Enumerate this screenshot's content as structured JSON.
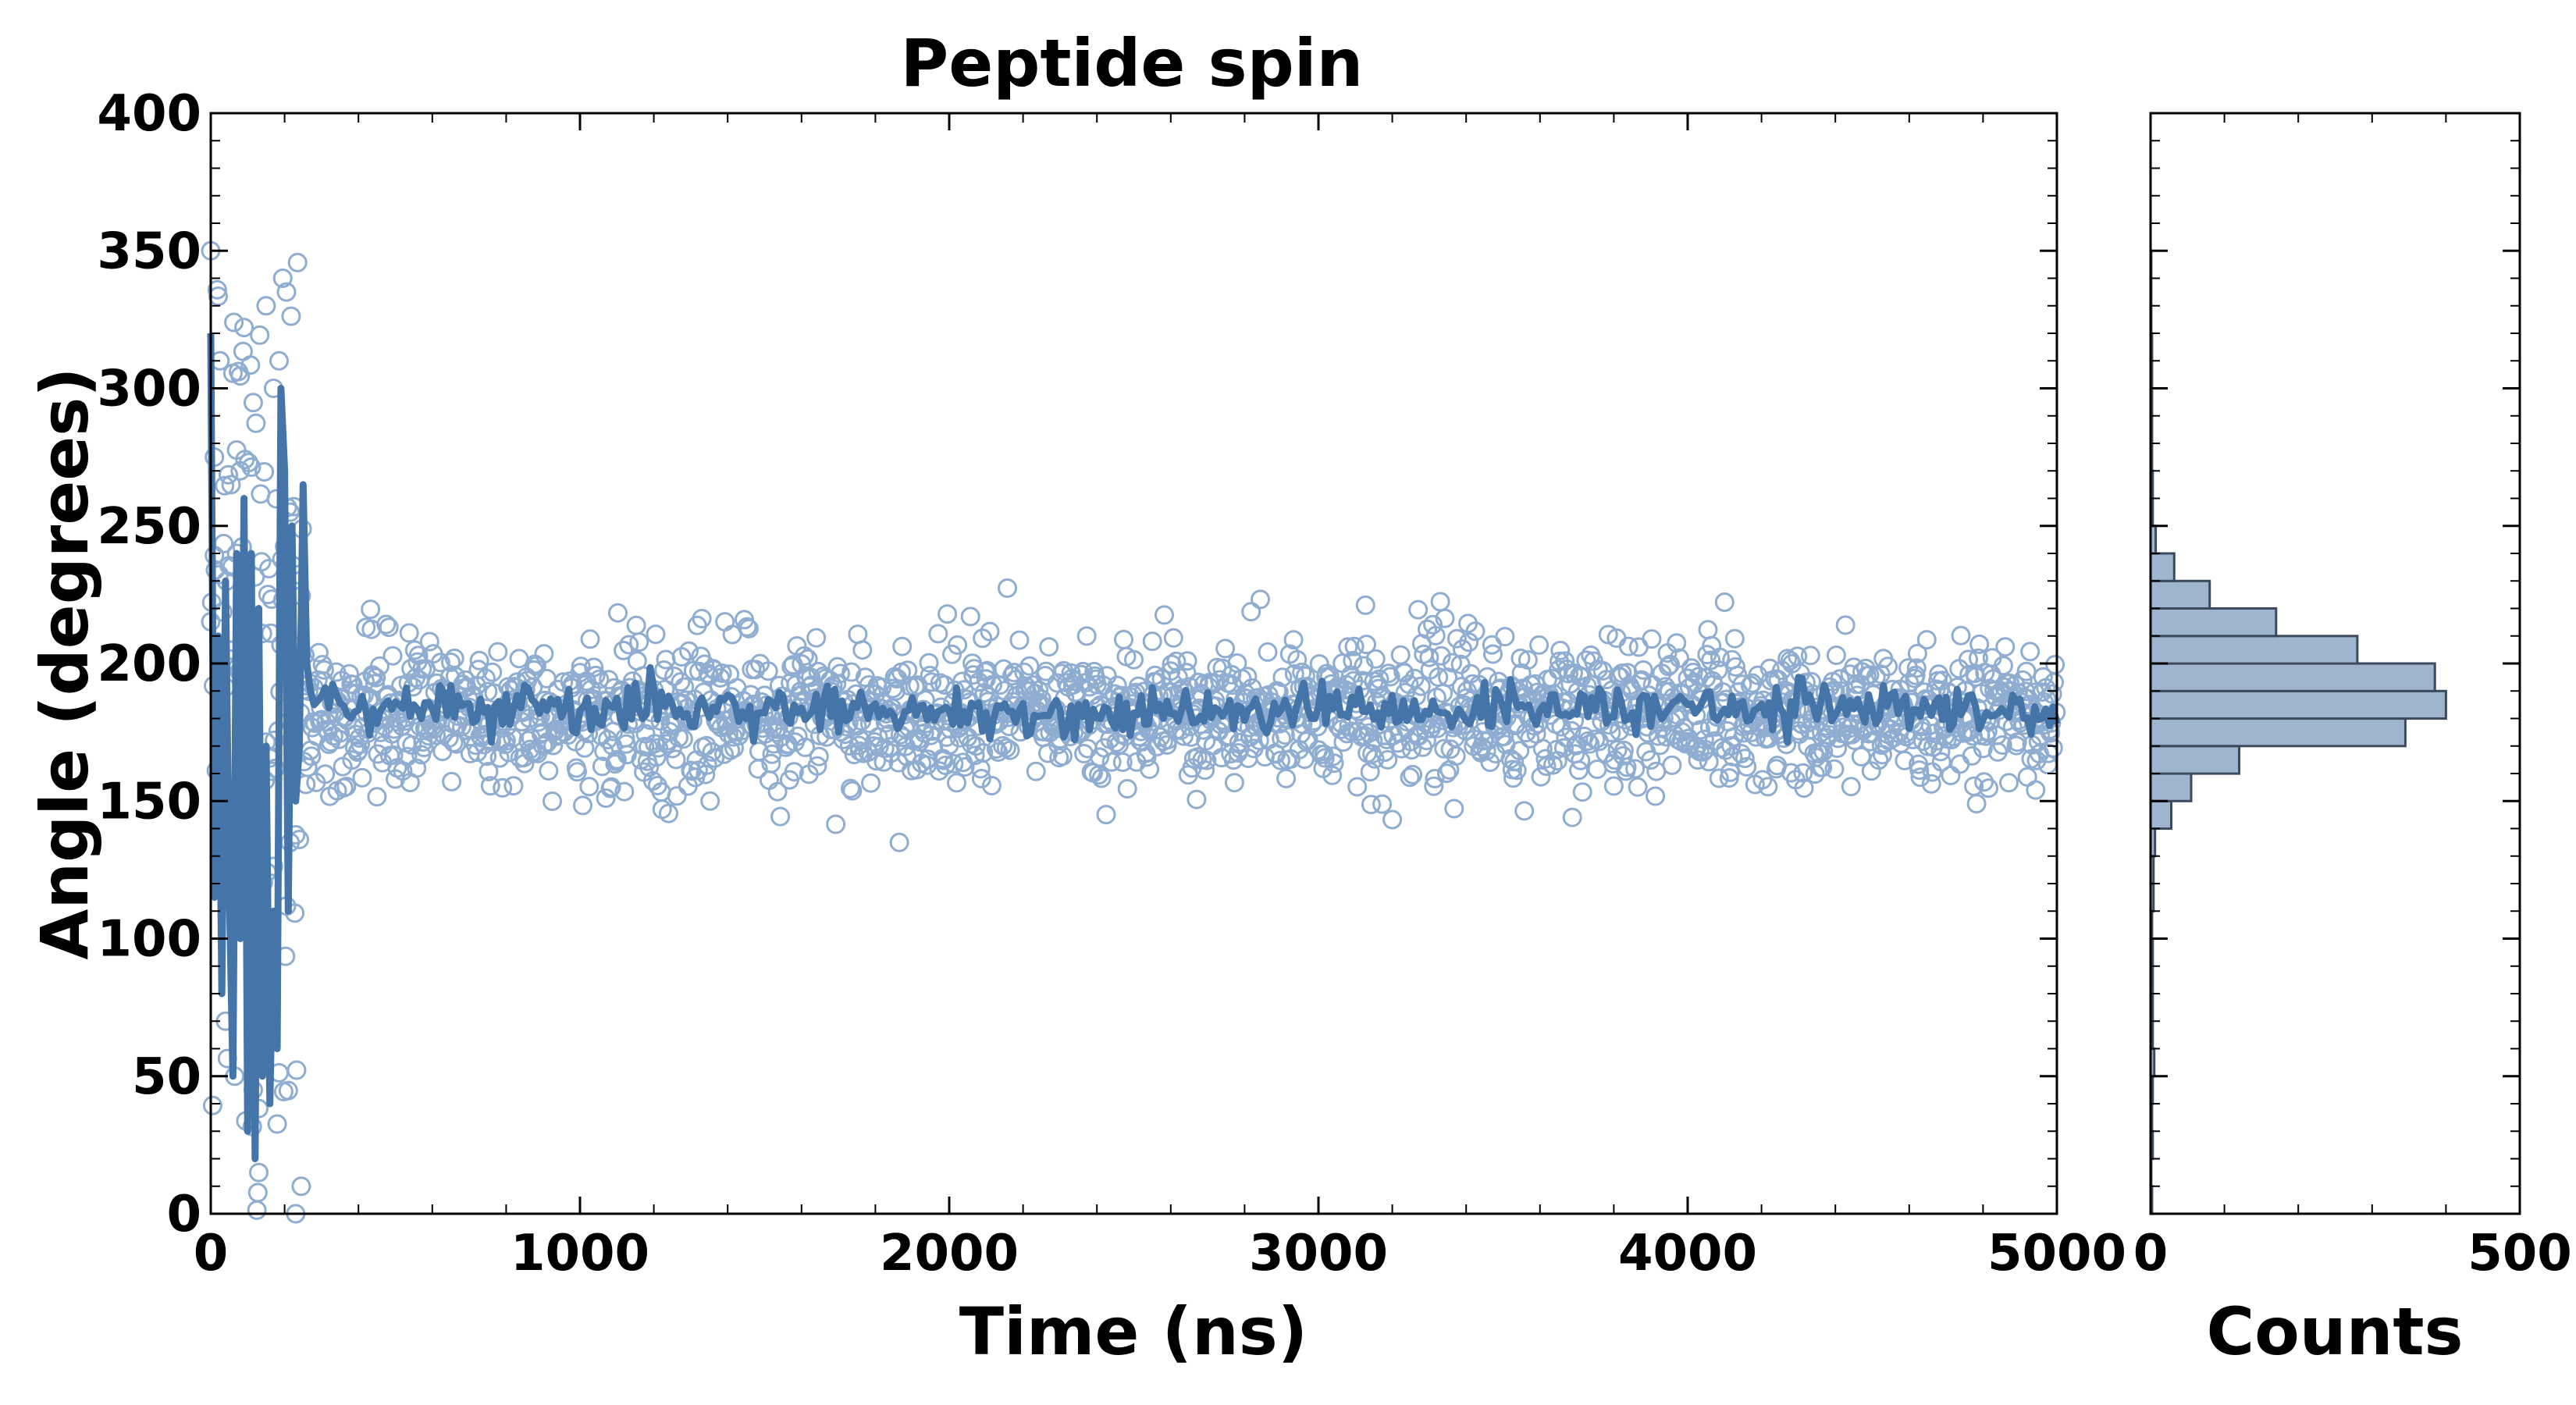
{
  "colors": {
    "series": "#4575a8",
    "marker_edge": "#8fadd0",
    "hist_fill": "#9fb5cf",
    "hist_edge": "#3b4a5c",
    "axes": "#000000"
  },
  "chart_data": [
    {
      "type": "scatter",
      "title": "Peptide spin",
      "xlabel": "Time (ns)",
      "ylabel": "Angle (degrees)",
      "xlim": [
        0,
        5000
      ],
      "ylim": [
        0,
        400
      ],
      "x_ticks": [
        0,
        1000,
        2000,
        3000,
        4000,
        5000
      ],
      "y_ticks": [
        0,
        50,
        100,
        150,
        200,
        250,
        300,
        350,
        400
      ],
      "grid": false,
      "series": [
        {
          "kind": "scatter",
          "marker": "open-circle",
          "n_points": 2000,
          "time_step_ns": 2.5,
          "equilibration_end_ns": 250,
          "equilibrated_mean": 182,
          "equilibrated_std": 13,
          "early_range": [
            0,
            350
          ],
          "x": [
            0,
            10,
            25,
            40,
            55,
            70,
            80,
            100,
            115,
            130,
            150,
            170,
            185,
            195,
            205,
            215,
            230,
            245
          ],
          "y": [
            350,
            275,
            310,
            70,
            265,
            240,
            270,
            190,
            45,
            15,
            330,
            300,
            310,
            340,
            335,
            255,
            0,
            10
          ]
        },
        {
          "kind": "line",
          "smoothing": "running mean",
          "x": [
            0,
            10,
            20,
            30,
            40,
            50,
            60,
            70,
            80,
            90,
            100,
            110,
            120,
            130,
            140,
            150,
            160,
            170,
            180,
            190,
            200,
            210,
            220,
            230,
            240,
            250,
            260,
            270,
            280,
            300,
            400,
            500,
            750,
            1000,
            1250,
            1500,
            1750,
            2000,
            2250,
            2500,
            2750,
            3000,
            3250,
            3500,
            3750,
            4000,
            4250,
            4500,
            4750,
            5000
          ],
          "y": [
            320,
            115,
            210,
            80,
            230,
            120,
            50,
            240,
            100,
            260,
            30,
            240,
            20,
            220,
            50,
            170,
            40,
            110,
            60,
            300,
            270,
            110,
            250,
            150,
            170,
            265,
            200,
            190,
            185,
            188,
            183,
            186,
            184,
            183,
            185,
            182,
            184,
            183,
            181,
            182,
            183,
            184,
            182,
            184,
            183,
            185,
            184,
            183,
            184,
            178
          ]
        }
      ]
    },
    {
      "type": "bar",
      "orientation": "horizontal",
      "xlabel": "Counts",
      "xlim": [
        0,
        500
      ],
      "x_ticks": [
        0,
        500
      ],
      "ylim": [
        0,
        400
      ],
      "bin_width": 10,
      "categories": [
        "0-10",
        "10-20",
        "20-30",
        "30-40",
        "40-50",
        "50-60",
        "60-70",
        "70-80",
        "80-90",
        "90-100",
        "100-110",
        "110-120",
        "120-130",
        "130-140",
        "140-150",
        "150-160",
        "160-170",
        "170-180",
        "180-190",
        "190-200",
        "200-210",
        "210-220",
        "220-230",
        "230-240",
        "240-250",
        "250-260",
        "260-270",
        "270-280",
        "280-290",
        "290-300",
        "300-310",
        "310-320",
        "320-330",
        "330-340",
        "340-350"
      ],
      "values": [
        2,
        1,
        3,
        2,
        3,
        5,
        3,
        3,
        3,
        3,
        2,
        4,
        4,
        6,
        28,
        55,
        120,
        345,
        400,
        385,
        280,
        170,
        80,
        32,
        7,
        3,
        3,
        2,
        2,
        2,
        2,
        2,
        1,
        1,
        1
      ]
    }
  ]
}
